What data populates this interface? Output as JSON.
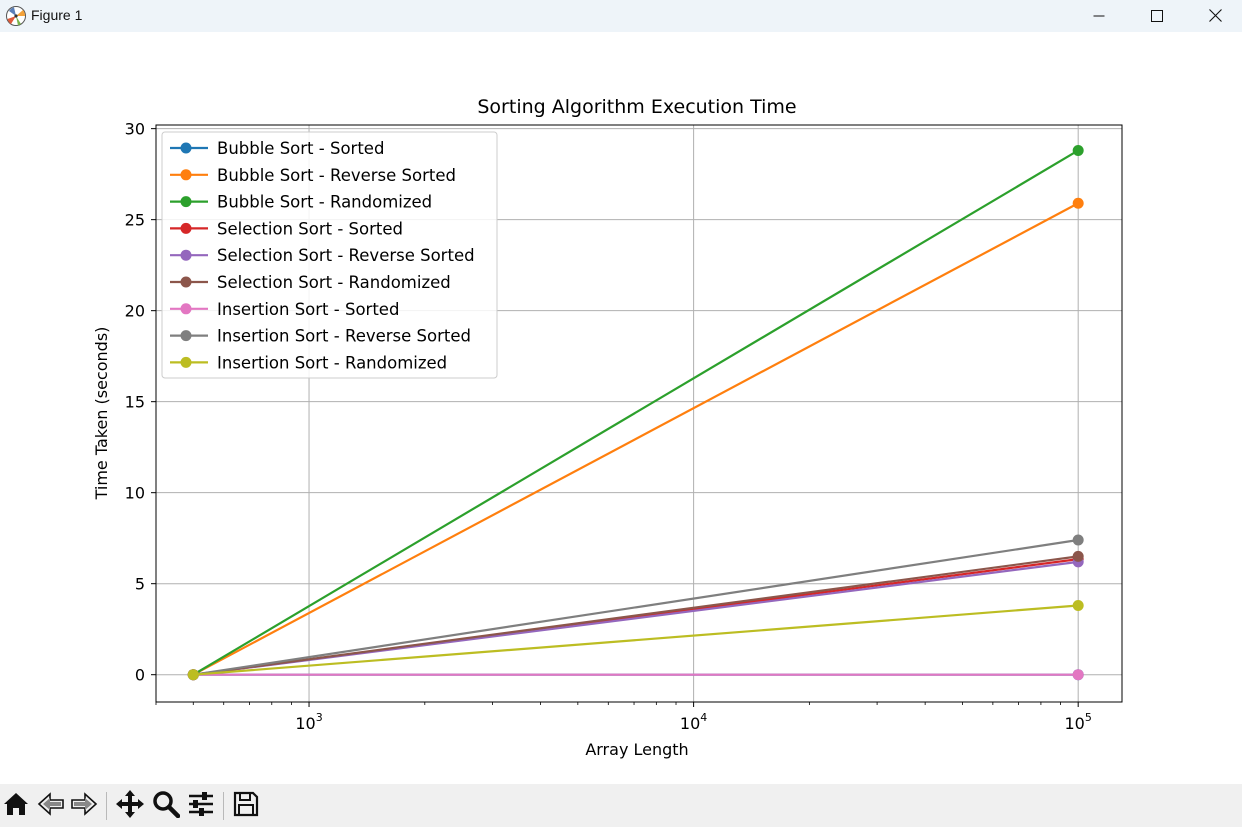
{
  "window": {
    "title": "Figure 1",
    "icon": "matplotlib-logo-icon",
    "controls": [
      "minimize-icon",
      "maximize-icon",
      "close-icon"
    ]
  },
  "toolbar": {
    "buttons": [
      "home-icon",
      "back-arrow-icon",
      "forward-arrow-icon",
      "pan-move-icon",
      "zoom-magnifier-icon",
      "configure-subplots-icon",
      "save-floppy-icon"
    ]
  },
  "chart_data": {
    "type": "line",
    "title": "Sorting Algorithm Execution Time",
    "xlabel": "Array Length",
    "ylabel": "Time Taken (seconds)",
    "x_scale": "log",
    "xlim": [
      400,
      130000
    ],
    "ylim": [
      -1.5,
      30.2
    ],
    "x_ticks": [
      {
        "value": 1000,
        "base": "10",
        "exp": "3"
      },
      {
        "value": 10000,
        "base": "10",
        "exp": "4"
      },
      {
        "value": 100000,
        "base": "10",
        "exp": "5"
      }
    ],
    "y_ticks": [
      0,
      5,
      10,
      15,
      20,
      25,
      30
    ],
    "grid": true,
    "legend_position": "upper-left",
    "x": [
      500,
      100000
    ],
    "series": [
      {
        "name": "Bubble Sort - Sorted",
        "color": "#1f77b4",
        "values": [
          0.0,
          0.0
        ]
      },
      {
        "name": "Bubble Sort - Reverse Sorted",
        "color": "#ff7f0e",
        "values": [
          0.0,
          25.9
        ]
      },
      {
        "name": "Bubble Sort - Randomized",
        "color": "#2ca02c",
        "values": [
          0.0,
          28.8
        ]
      },
      {
        "name": "Selection Sort - Sorted",
        "color": "#d62728",
        "values": [
          0.0,
          6.35
        ]
      },
      {
        "name": "Selection Sort - Reverse Sorted",
        "color": "#9467bd",
        "values": [
          0.0,
          6.2
        ]
      },
      {
        "name": "Selection Sort - Randomized",
        "color": "#8c564b",
        "values": [
          0.0,
          6.5
        ]
      },
      {
        "name": "Insertion Sort - Sorted",
        "color": "#e377c2",
        "values": [
          0.0,
          0.0
        ]
      },
      {
        "name": "Insertion Sort - Reverse Sorted",
        "color": "#7f7f7f",
        "values": [
          0.0,
          7.4
        ]
      },
      {
        "name": "Insertion Sort - Randomized",
        "color": "#bcbd22",
        "values": [
          0.0,
          3.8
        ]
      }
    ]
  }
}
